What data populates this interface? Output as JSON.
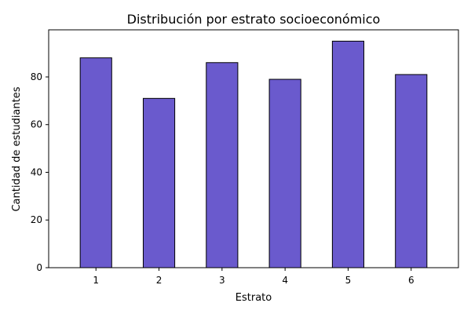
{
  "chart_data": {
    "type": "bar",
    "title": "Distribución por estrato socioeconómico",
    "xlabel": "Estrato",
    "ylabel": "Cantidad de estudiantes",
    "categories": [
      "1",
      "2",
      "3",
      "4",
      "5",
      "6"
    ],
    "values": [
      88,
      71,
      86,
      79,
      95,
      81
    ],
    "ylim": [
      0,
      99.75
    ],
    "yticks": [
      0,
      20,
      40,
      60,
      80
    ],
    "grid": false,
    "legend": "none",
    "bar_color": "#6a5acd",
    "bar_edge_color": "#000000"
  }
}
